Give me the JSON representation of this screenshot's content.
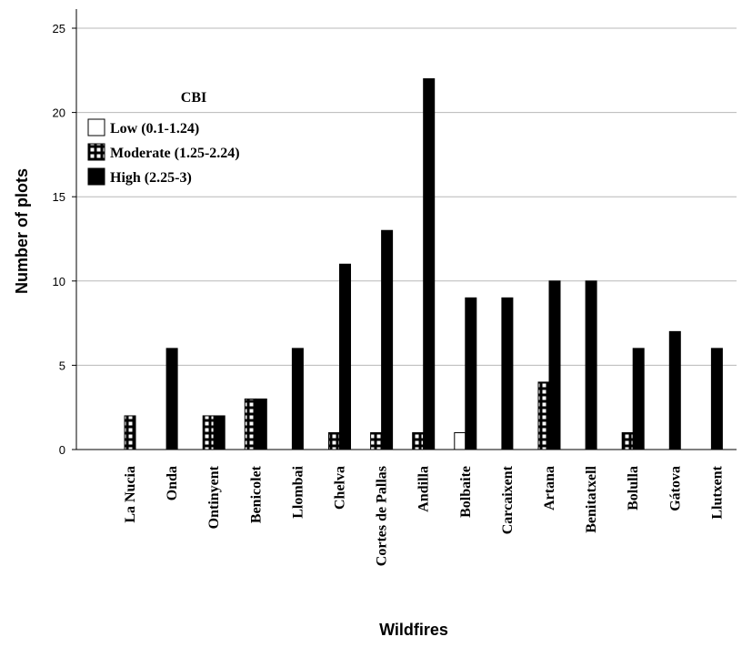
{
  "chart_data": {
    "type": "bar",
    "xlabel": "Wildfires",
    "ylabel": "Number of plots",
    "ylim": [
      0,
      25
    ],
    "yticks": [
      0,
      5,
      10,
      15,
      20,
      25
    ],
    "grid": "horizontal",
    "legend": {
      "title": "CBI",
      "placement": "top-left",
      "entries": [
        "Low (0.1-1.24)",
        "Moderate (1.25-2.24)",
        "High (2.25-3)"
      ]
    },
    "categories": [
      "La Nucia",
      "Onda",
      "Ontinyent",
      "Benicolet",
      "Llombai",
      "Chelva",
      "Cortes de Pallas",
      "Andilla",
      "Bolbaite",
      "Carcaixent",
      "Artana",
      "Benitatxell",
      "Bolulla",
      "Gátova",
      "Llutxent"
    ],
    "series": [
      {
        "name": "Low (0.1-1.24)",
        "style": "white",
        "values": [
          0,
          0,
          0,
          0,
          0,
          0,
          0,
          0,
          1,
          0,
          0,
          0,
          0,
          0,
          0
        ]
      },
      {
        "name": "Moderate (1.25-2.24)",
        "style": "checker",
        "values": [
          2,
          0,
          2,
          3,
          0,
          1,
          1,
          1,
          0,
          0,
          4,
          0,
          1,
          0,
          0
        ]
      },
      {
        "name": "High (2.25-3)",
        "style": "black",
        "values": [
          0,
          6,
          2,
          3,
          6,
          11,
          13,
          22,
          9,
          9,
          10,
          10,
          6,
          7,
          6
        ]
      }
    ]
  }
}
